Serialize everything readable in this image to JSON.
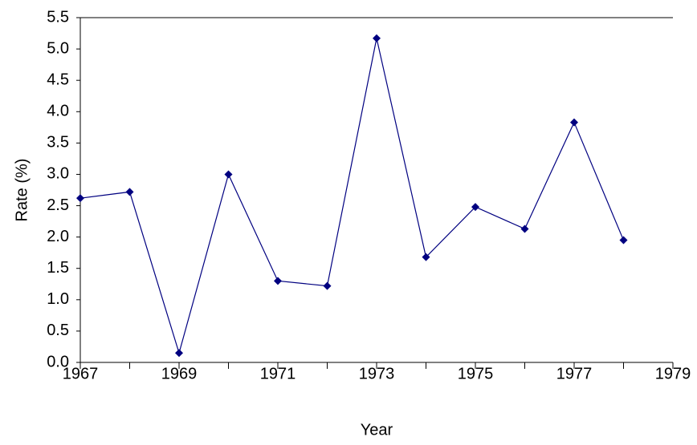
{
  "chart_data": {
    "type": "line",
    "x_label": "Year",
    "y_label": "Rate  (%)",
    "x": [
      1967,
      1968,
      1969,
      1970,
      1971,
      1972,
      1973,
      1974,
      1975,
      1976,
      1977,
      1978
    ],
    "series": [
      {
        "color": "#000080",
        "values": [
          2.62,
          2.72,
          0.15,
          3.0,
          1.3,
          1.22,
          5.17,
          1.68,
          2.48,
          2.13,
          3.83,
          1.95
        ]
      }
    ],
    "xlim": [
      1967,
      1979
    ],
    "xticks": [
      1967,
      1969,
      1971,
      1973,
      1975,
      1977,
      1979
    ],
    "ylim": [
      0,
      5.5
    ],
    "yticks": [
      {
        "value": 0,
        "label": "0.0"
      },
      0.5,
      {
        "value": 1,
        "label": "1.0"
      },
      1.5,
      {
        "value": 2,
        "label": "2.0"
      },
      2.5,
      {
        "value": 3,
        "label": "3.0"
      },
      3.5,
      {
        "value": 4,
        "label": "4.0"
      },
      4.5,
      {
        "value": 5,
        "label": "5.0"
      },
      5.5
    ],
    "grid": false
  }
}
